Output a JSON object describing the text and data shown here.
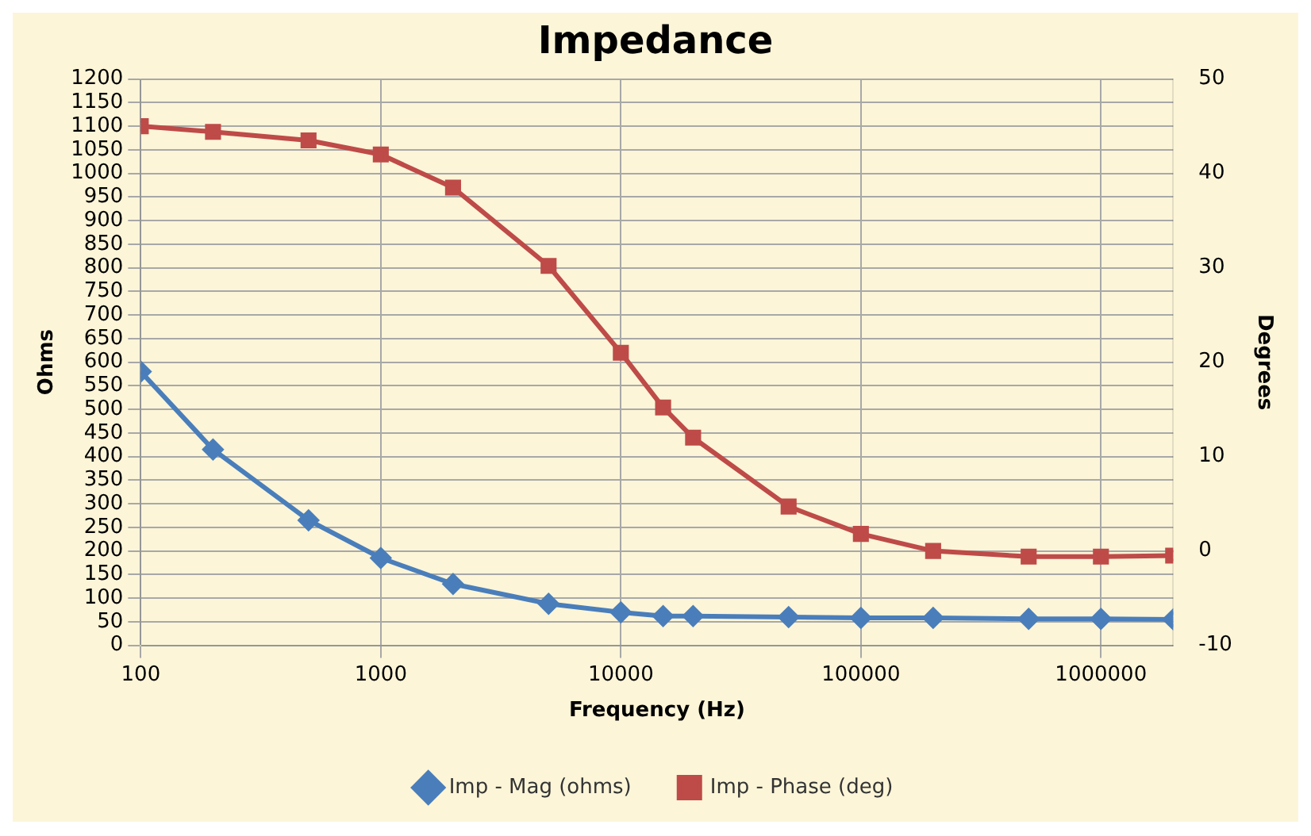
{
  "chart_data": {
    "type": "line",
    "title": "Impedance",
    "xlabel": "Frequency (Hz)",
    "ylabel": "Ohms",
    "y2label": "Degrees",
    "x": [
      100,
      200,
      500,
      1000,
      2000,
      5000,
      10000,
      15000,
      20000,
      50000,
      100000,
      200000,
      500000,
      1000000,
      2000000
    ],
    "log": "x",
    "xlim": [
      100,
      2000000
    ],
    "xticks": [
      100,
      1000,
      10000,
      100000,
      1000000
    ],
    "ylim": [
      0,
      1200
    ],
    "yticks": [
      0,
      50,
      100,
      150,
      200,
      250,
      300,
      350,
      400,
      450,
      500,
      550,
      600,
      650,
      700,
      750,
      800,
      850,
      900,
      950,
      1000,
      1050,
      1100,
      1150,
      1200
    ],
    "y2lim": [
      -10,
      50
    ],
    "y2ticks": [
      -10,
      0,
      10,
      20,
      30,
      40,
      50
    ],
    "grid": true,
    "legend": "bottom",
    "line_style": "solid",
    "series": [
      {
        "name": "Imp - Mag (ohms)",
        "color": "#4a7ebb",
        "marker": "diamond",
        "values": [
          580,
          415,
          265,
          185,
          130,
          88,
          70,
          62,
          62,
          60,
          58,
          58,
          56,
          56,
          55
        ]
      },
      {
        "name": "Imp - Phase (deg)",
        "color": "#be4b48",
        "marker": "square",
        "axis": "y2",
        "values": [
          45,
          44.4,
          43.5,
          42,
          38.5,
          30.2,
          21,
          15.2,
          12,
          4.7,
          1.8,
          0,
          -0.6,
          -0.6,
          -0.5
        ]
      }
    ]
  }
}
